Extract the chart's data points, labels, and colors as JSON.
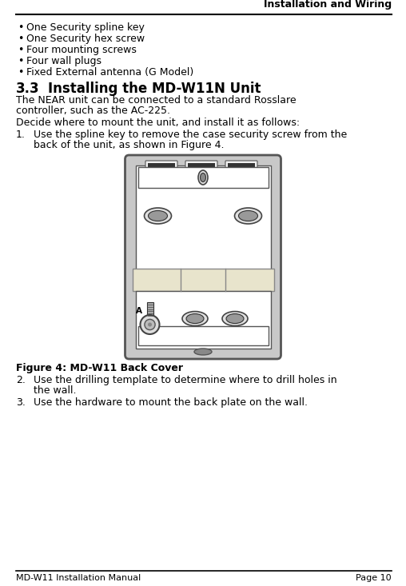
{
  "header_text": "Installation and Wiring",
  "bullet_items": [
    "One Security spline key",
    "One Security hex screw",
    "Four mounting screws",
    "Four wall plugs",
    "Fixed External antenna (G Model)"
  ],
  "section_number": "3.3",
  "section_title": "Installing the MD-W11N Unit",
  "para1_line1": "The NEAR unit can be connected to a standard Rosslare",
  "para1_line2": "controller, such as the AC-225.",
  "para2": "Decide where to mount the unit, and install it as follows:",
  "step1_num": "1.",
  "step1_line1": "Use the spline key to remove the case security screw from the",
  "step1_line2": "back of the unit, as shown in Figure 4.",
  "figure_caption": "Figure 4: MD-W11 Back Cover",
  "step2_num": "2.",
  "step2_line1": "Use the drilling template to determine where to drill holes in",
  "step2_line2": "the wall.",
  "step3_num": "3.",
  "step3_text": "Use the hardware to mount the back plate on the wall.",
  "footer_left": "MD-W11 Installation Manual",
  "footer_right": "Page 10",
  "bg_color": "#ffffff",
  "text_color": "#000000"
}
